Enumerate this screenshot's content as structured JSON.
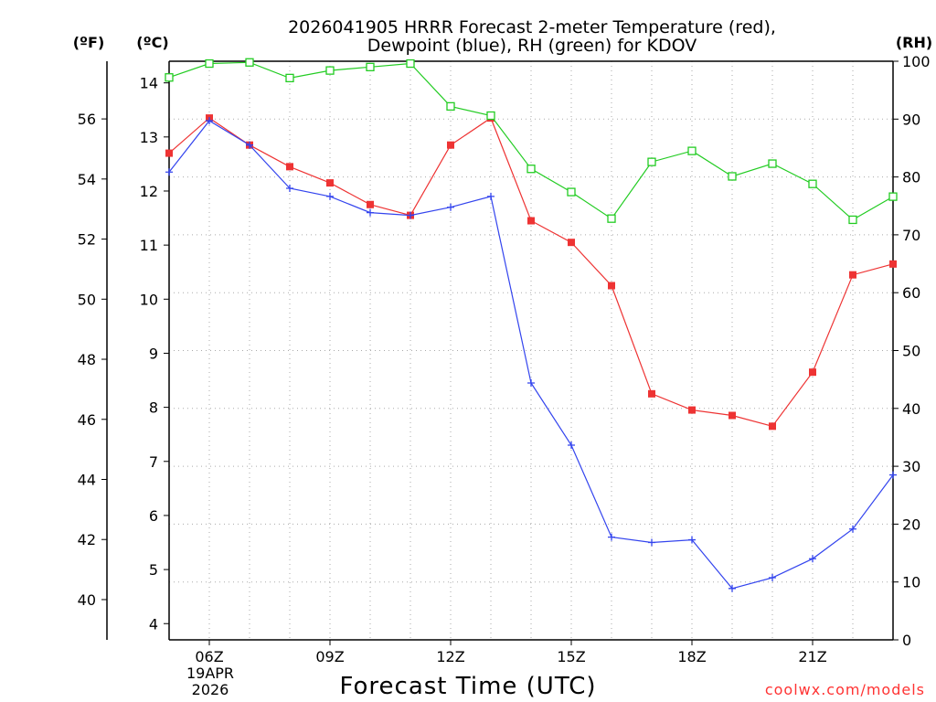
{
  "chart_data": {
    "type": "line",
    "title_line1": "2026041905 HRRR Forecast 2-meter Temperature (red),",
    "title_line2": "Dewpoint (blue), RH (green) for KDOV",
    "xlabel": "Forecast Time (UTC)",
    "credit": "coolwx.com/models",
    "left_outer_unit": "(ºF)",
    "left_inner_unit": "(ºC)",
    "right_unit": "(RH)",
    "x": [
      5,
      6,
      7,
      8,
      9,
      10,
      11,
      12,
      13,
      14,
      15,
      16,
      17,
      18,
      19,
      20,
      21,
      22,
      23
    ],
    "xlim": [
      5,
      23
    ],
    "x_ticks": [
      {
        "x": 6,
        "label": "06Z"
      },
      {
        "x": 9,
        "label": "09Z"
      },
      {
        "x": 12,
        "label": "12Z"
      },
      {
        "x": 15,
        "label": "15Z"
      },
      {
        "x": 18,
        "label": "18Z"
      },
      {
        "x": 21,
        "label": "21Z"
      }
    ],
    "date_label_line1": "19APR",
    "date_label_line2": "2026",
    "celsius_ylim": [
      3.7,
      14.4
    ],
    "celsius_ticks": [
      4,
      5,
      6,
      7,
      8,
      9,
      10,
      11,
      12,
      13,
      14
    ],
    "fahrenheit_ticks": [
      40,
      42,
      44,
      46,
      48,
      50,
      52,
      54,
      56
    ],
    "rh_ylim": [
      0,
      100
    ],
    "rh_ticks": [
      0,
      10,
      20,
      30,
      40,
      50,
      60,
      70,
      80,
      90,
      100
    ],
    "series": [
      {
        "name": "Temperature",
        "color": "#ee3333",
        "axis": "celsius",
        "marker": "filled-square",
        "values": [
          12.7,
          13.35,
          12.85,
          12.45,
          12.15,
          11.75,
          11.55,
          12.85,
          13.35,
          11.45,
          11.05,
          10.25,
          8.25,
          7.95,
          7.85,
          7.65,
          8.65,
          10.45,
          10.65
        ]
      },
      {
        "name": "Dewpoint",
        "color": "#3344ee",
        "axis": "celsius",
        "marker": "plus",
        "values": [
          12.35,
          13.3,
          12.85,
          12.05,
          11.9,
          11.6,
          11.55,
          11.7,
          11.9,
          8.45,
          7.3,
          5.6,
          5.5,
          5.55,
          4.65,
          4.85,
          5.2,
          5.75,
          6.75
        ]
      },
      {
        "name": "RH",
        "color": "#22cc22",
        "axis": "rh",
        "marker": "open-square",
        "values": [
          97.2,
          99.6,
          99.8,
          97.1,
          98.4,
          99.0,
          99.6,
          92.2,
          90.6,
          81.4,
          77.4,
          72.8,
          82.6,
          84.5,
          80.1,
          82.3,
          78.8,
          72.6,
          76.6
        ]
      }
    ]
  }
}
